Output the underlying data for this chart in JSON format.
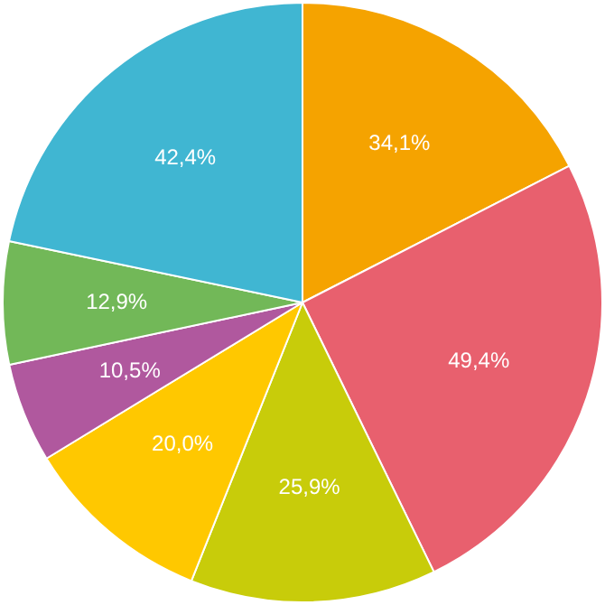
{
  "chart_data": {
    "type": "pie",
    "categories": [
      null,
      null,
      null,
      null,
      null,
      null,
      null
    ],
    "values": [
      34.1,
      49.4,
      25.9,
      20.0,
      10.5,
      12.9,
      42.4
    ],
    "value_labels": [
      "34,1%",
      "49,4%",
      "25,9%",
      "20,0%",
      "10,5%",
      "12,9%",
      "42,4%"
    ],
    "colors": [
      "#f5a300",
      "#e8606e",
      "#c8cc0a",
      "#ffc800",
      "#b0589e",
      "#72b858",
      "#40b6d2"
    ],
    "legend": false
  }
}
